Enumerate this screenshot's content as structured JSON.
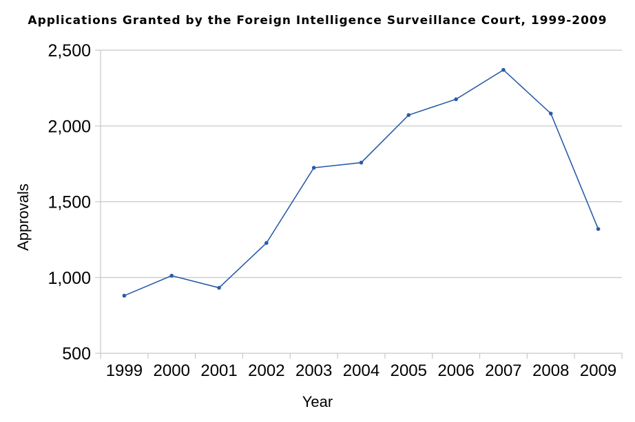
{
  "chart_data": {
    "type": "line",
    "title": "Applications Granted by the Foreign Intelligence Surveillance Court, 1999-2009",
    "xlabel": "Year",
    "ylabel": "Approvals",
    "categories": [
      "1999",
      "2000",
      "2001",
      "2002",
      "2003",
      "2004",
      "2005",
      "2006",
      "2007",
      "2008",
      "2009"
    ],
    "series": [
      {
        "values": [
          880,
          1012,
          932,
          1228,
          1724,
          1758,
          2072,
          2176,
          2370,
          2082,
          1320
        ]
      }
    ],
    "ylim": [
      500,
      2500
    ],
    "yticks": [
      500,
      1000,
      1500,
      2000,
      2500
    ],
    "ytick_labels": [
      "500",
      "1,000",
      "1,500",
      "2,000",
      "2,500"
    ],
    "grid": true,
    "legend": "none",
    "line_color": "#2a5ca8",
    "grid_color": "#c8c8c8"
  }
}
